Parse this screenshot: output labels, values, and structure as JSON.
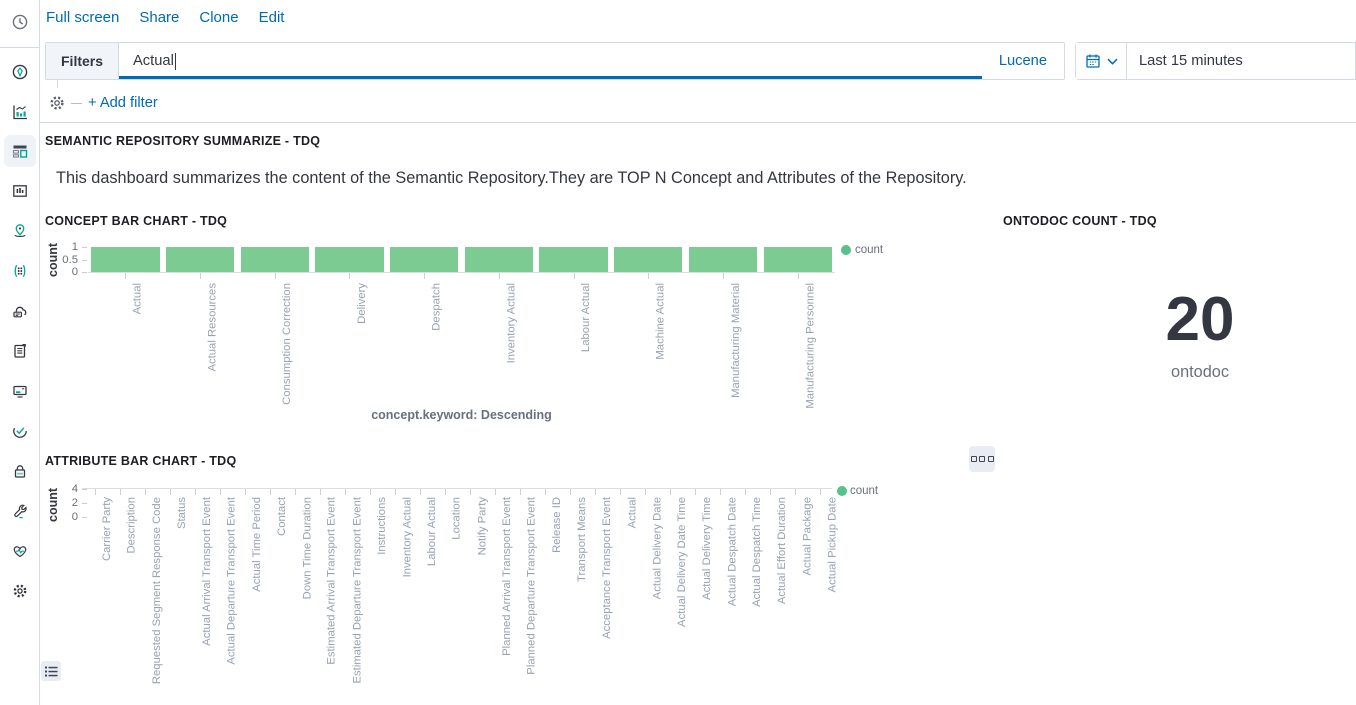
{
  "top_nav": {
    "links": [
      "Full screen",
      "Share",
      "Clone",
      "Edit"
    ]
  },
  "filter_bar": {
    "filters_label": "Filters",
    "query_value": "Actual",
    "query_language": "Lucene",
    "time_range": "Last 15 minutes",
    "add_filter_label": "+ Add filter"
  },
  "sidebar": {
    "icons": [
      "clock-icon",
      "compass-icon",
      "bar-chart-icon",
      "dashboard-icon",
      "canvas-icon",
      "map-pin-icon",
      "machine-learning-icon",
      "apm-cloud-icon",
      "logs-icon",
      "metrics-icon",
      "uptime-icon",
      "lock-icon",
      "wrench-icon",
      "heartbeat-icon",
      "gear-icon"
    ],
    "selected": "dashboard-icon"
  },
  "panels": {
    "summary": {
      "title": "SEMANTIC REPOSITORY SUMMARIZE - TDQ",
      "description": "This dashboard summarizes the content of the Semantic Repository.They are TOP N Concept and Attributes of the Repository."
    },
    "concept": {
      "title": "CONCEPT BAR CHART - TDQ"
    },
    "ontodoc": {
      "title": "ONTODOC COUNT - TDQ",
      "value": "20",
      "label": "ontodoc"
    },
    "attribute": {
      "title": "ATTRIBUTE BAR CHART - TDQ"
    }
  },
  "colors": {
    "accent": "#006BB4",
    "bar_green": "#7CCB92",
    "legend_green": "#54C28A",
    "border": "#D3DAE6",
    "axis_label": "#98A2B3",
    "muted": "#69707D",
    "title_dark": "#343741"
  },
  "chart_data": [
    {
      "type": "bar",
      "title": "CONCEPT BAR CHART - TDQ",
      "categories": [
        "Actual",
        "Actual Resources",
        "Consumption Correction",
        "Delivery",
        "Despatch",
        "Inventory Actual",
        "Labour Actual",
        "Machine Actual",
        "Manufacturing Material",
        "Manufacturing Personnel"
      ],
      "series": [
        {
          "name": "count",
          "values": [
            1,
            1,
            1,
            1,
            1,
            1,
            1,
            1,
            1,
            1
          ]
        }
      ],
      "ylabel": "count",
      "xlabel": "concept.keyword: Descending",
      "ylim": [
        0,
        1
      ],
      "yticks": [
        1,
        0.5,
        0
      ],
      "legend_position": "top-right",
      "grid": false,
      "bar_color": "#7CCB92"
    },
    {
      "type": "bar",
      "title": "ATTRIBUTE BAR CHART - TDQ",
      "categories": [
        "Carrier Party",
        "Description",
        "Requested Segment Response Code",
        "Status",
        "Actual Arrival Transport Event",
        "Actual Departure Transport Event",
        "Actual Time Period",
        "Contact",
        "Down Time Duration",
        "Estimated Arrival Transport Event",
        "Estimated Departure Transport Event",
        "Instructions",
        "Inventory Actual",
        "Labour Actual",
        "Location",
        "Notify Party",
        "Planned Arrival Transport Event",
        "Planned Departure Transport Event",
        "Release ID",
        "Transport Means",
        "Acceptance Transport Event",
        "Actual",
        "Actual Delivery Date",
        "Actual Delivery Date Time",
        "Actual Delivery Time",
        "Actual Despatch Date",
        "Actual Despatch Time",
        "Actual Effort Duration",
        "Actual Package",
        "Actual Pickup Date"
      ],
      "series": [
        {
          "name": "count",
          "values": [
            0,
            0,
            0,
            0,
            0,
            0,
            0,
            0,
            0,
            0,
            0,
            0,
            0,
            0,
            0,
            0,
            0,
            0,
            0,
            0,
            0,
            0,
            0,
            0,
            0,
            0,
            0,
            0,
            0,
            0
          ]
        }
      ],
      "ylabel": "count",
      "xlabel": "",
      "ylim": [
        0,
        4
      ],
      "yticks": [
        4,
        2,
        0
      ],
      "legend_position": "top-right",
      "grid": false,
      "bar_color": "#7CCB92"
    }
  ]
}
